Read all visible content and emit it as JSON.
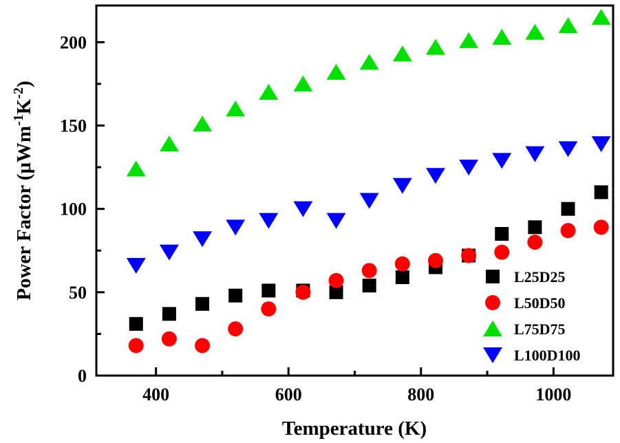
{
  "chart_data": {
    "type": "scatter",
    "xlabel": "Temperature (K)",
    "ylabel": {
      "base": "Power Factor (μWm",
      "sup1": "-1",
      "mid": "K",
      "sup2": "-2",
      "end": ")"
    },
    "xlim": [
      310,
      1090
    ],
    "ylim": [
      0,
      222
    ],
    "xticks": [
      400,
      600,
      800,
      1000
    ],
    "xtick_labels": [
      "400",
      "600",
      "800",
      "1000"
    ],
    "yticks": [
      0,
      50,
      100,
      150,
      200
    ],
    "ytick_labels": [
      "0",
      "50",
      "100",
      "150",
      "200"
    ],
    "grid": false,
    "legend_position": "bottom-right",
    "x": [
      370,
      420,
      470,
      520,
      570,
      622,
      672,
      722,
      772,
      822,
      872,
      922,
      972,
      1022,
      1072
    ],
    "series": [
      {
        "name": "L25D25",
        "marker": "square",
        "color": "#000000",
        "values": [
          31,
          37,
          43,
          48,
          51,
          51,
          50,
          54,
          59,
          65,
          72,
          85,
          89,
          100,
          110
        ]
      },
      {
        "name": "L50D50",
        "marker": "circle",
        "color": "#ff0000",
        "values": [
          18,
          22,
          18,
          28,
          40,
          50,
          57,
          63,
          67,
          69,
          72,
          74,
          80,
          87,
          89
        ]
      },
      {
        "name": "L75D75",
        "marker": "triangle-up",
        "color": "#00e000",
        "values": [
          124,
          139,
          151,
          160,
          170,
          175,
          182,
          188,
          193,
          197,
          201,
          203,
          206,
          210,
          215
        ]
      },
      {
        "name": "L100D100",
        "marker": "triangle-down",
        "color": "#0000ff",
        "values": [
          66,
          74,
          82,
          89,
          93,
          100,
          93,
          105,
          114,
          120,
          125,
          129,
          133,
          136,
          139
        ]
      }
    ]
  }
}
